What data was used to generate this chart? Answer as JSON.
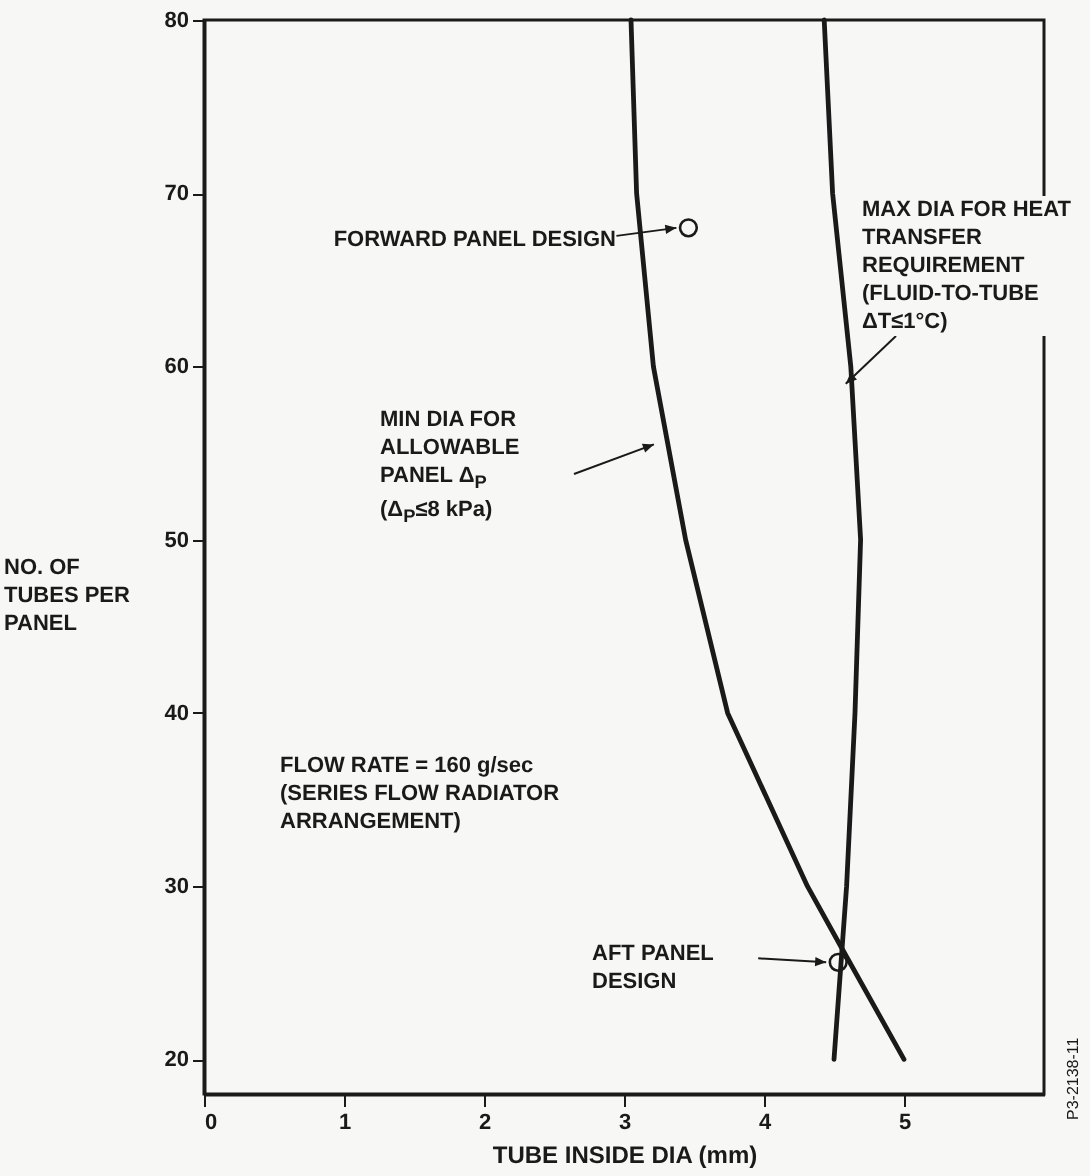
{
  "chart_data": {
    "type": "line",
    "xlabel": "TUBE INSIDE DIA (mm)",
    "ylabel": "NO. OF TUBES PER PANEL",
    "xlim": [
      0,
      6
    ],
    "xticks": [
      0,
      1,
      2,
      3,
      4,
      5
    ],
    "ylim": [
      18,
      80
    ],
    "yticks": [
      20,
      30,
      40,
      50,
      60,
      70,
      80
    ],
    "grid": false,
    "series": [
      {
        "name": "MIN DIA FOR ALLOWABLE PANEL Δ$_{P}$ (Δ$_{P}$≤8 kPa)",
        "color": "#1a1a1a",
        "x": [
          3.05,
          3.09,
          3.21,
          3.44,
          3.74,
          4.31,
          4.55,
          5.0
        ],
        "values": [
          80,
          70,
          60,
          50,
          40,
          30,
          26.5,
          20
        ]
      },
      {
        "name": "MAX DIA FOR HEAT TRANSFER REQUIREMENT (FLUID-TO-TUBE ΔT≤1°C)",
        "color": "#1a1a1a",
        "x": [
          4.43,
          4.49,
          4.62,
          4.69,
          4.65,
          4.59,
          4.5
        ],
        "values": [
          80,
          70,
          60,
          50,
          40,
          30,
          20
        ]
      },
      {
        "type": "scatter",
        "marker": "circle",
        "color": "#1a1a1a",
        "x": [
          3.46,
          4.53
        ],
        "values": [
          68.0,
          25.6
        ]
      }
    ],
    "annotations": [
      "FLOW RATE = 160 g/sec (SERIES FLOW RADIATOR ARRANGEMENT)",
      "P3-2138-11",
      "FORWARD PANEL DESIGN",
      "AFT PANEL DESIGN"
    ]
  }
}
